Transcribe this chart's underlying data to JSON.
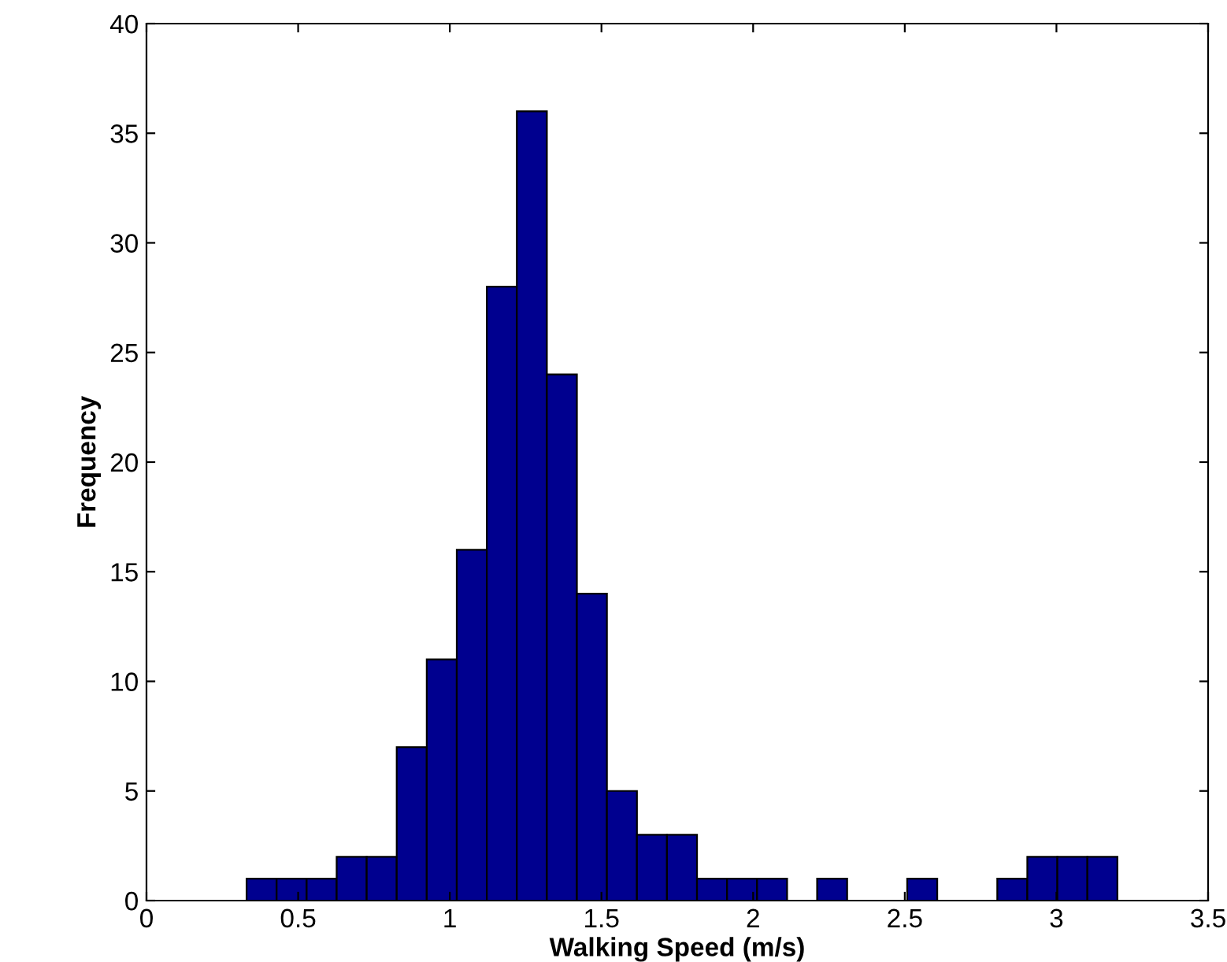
{
  "chart_data": {
    "type": "histogram",
    "xlabel": "Walking Speed (m/s)",
    "ylabel": "Frequency",
    "color": "#00008f",
    "bins": [
      0.33,
      0.429,
      0.528,
      0.627,
      0.726,
      0.825,
      0.924,
      1.023,
      1.122,
      1.221,
      1.32,
      1.419,
      1.518,
      1.617,
      1.716,
      1.815,
      1.914,
      2.013,
      2.112,
      2.211,
      2.31,
      2.409,
      2.508,
      2.607,
      2.706,
      2.805,
      2.904,
      3.003,
      3.102,
      3.201
    ],
    "values": [
      1,
      1,
      1,
      2,
      2,
      7,
      11,
      16,
      28,
      36,
      24,
      14,
      5,
      3,
      3,
      1,
      1,
      1,
      0,
      1,
      0,
      0,
      1,
      0,
      0,
      1,
      2,
      2,
      2
    ],
    "xlim": [
      0,
      3.5
    ],
    "xticks": [
      0,
      0.5,
      1,
      1.5,
      2,
      2.5,
      3,
      3.5
    ],
    "ylim": [
      0,
      40
    ],
    "yticks": [
      0,
      5,
      10,
      15,
      20,
      25,
      30,
      35,
      40
    ],
    "grid": false
  }
}
